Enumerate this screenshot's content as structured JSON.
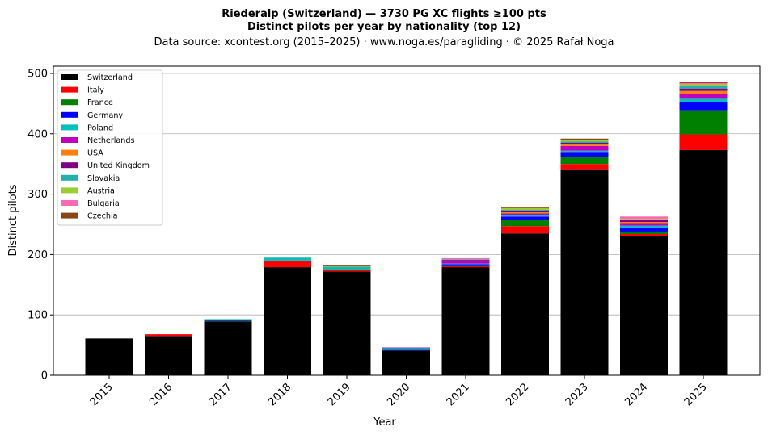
{
  "chart_data": {
    "type": "bar",
    "stacked": true,
    "title": "Riederalp (Switzerland)  —  3730 PG XC flights ≥100 pts",
    "subtitle": "Distinct pilots per year by nationality (top 12)",
    "source": "Data source: xcontest.org (2015–2025)  ·  www.noga.es/paragliding  ·  © 2025 Rafał Noga",
    "xlabel": "Year",
    "ylabel": "Distinct pilots",
    "ylim": [
      0,
      512
    ],
    "yticks": [
      0,
      100,
      200,
      300,
      400,
      500
    ],
    "grid": "y",
    "legend_position": "top-left",
    "categories": [
      "2015",
      "2016",
      "2017",
      "2018",
      "2019",
      "2020",
      "2021",
      "2022",
      "2023",
      "2024",
      "2025"
    ],
    "series": [
      {
        "name": "Switzerland",
        "color": "#000000",
        "values": [
          61,
          65,
          89,
          179,
          172,
          41,
          179,
          235,
          340,
          230,
          373
        ]
      },
      {
        "name": "Italy",
        "color": "#ff0000",
        "values": [
          0,
          3,
          0,
          11,
          2,
          0,
          2,
          12,
          10,
          4,
          26
        ]
      },
      {
        "name": "France",
        "color": "#008000",
        "values": [
          0,
          0,
          1,
          0,
          0,
          0,
          1,
          10,
          12,
          4,
          40
        ]
      },
      {
        "name": "Germany",
        "color": "#0000ff",
        "values": [
          0,
          0,
          1,
          0,
          0,
          1,
          2,
          6,
          8,
          7,
          14
        ]
      },
      {
        "name": "Poland",
        "color": "#00bfbf",
        "values": [
          0,
          0,
          2,
          4,
          1,
          3,
          1,
          2,
          2,
          3,
          5
        ]
      },
      {
        "name": "Netherlands",
        "color": "#bf00bf",
        "values": [
          0,
          0,
          0,
          0,
          0,
          0,
          4,
          3,
          8,
          4,
          8
        ]
      },
      {
        "name": "USA",
        "color": "#ff7f0e",
        "values": [
          0,
          0,
          0,
          0,
          0,
          0,
          0,
          2,
          3,
          2,
          5
        ]
      },
      {
        "name": "United Kingdom",
        "color": "#800080",
        "values": [
          0,
          0,
          0,
          0,
          0,
          1,
          2,
          2,
          2,
          3,
          4
        ]
      },
      {
        "name": "Slovakia",
        "color": "#20b2aa",
        "values": [
          0,
          0,
          0,
          1,
          5,
          0,
          1,
          2,
          2,
          1,
          4
        ]
      },
      {
        "name": "Austria",
        "color": "#9acd32",
        "values": [
          0,
          0,
          0,
          0,
          1,
          0,
          0,
          3,
          2,
          1,
          3
        ]
      },
      {
        "name": "Bulgaria",
        "color": "#ff69b4",
        "values": [
          0,
          0,
          0,
          0,
          0,
          0,
          2,
          0,
          1,
          4,
          2
        ]
      },
      {
        "name": "Czechia",
        "color": "#8b4513",
        "values": [
          0,
          0,
          0,
          0,
          2,
          0,
          0,
          2,
          2,
          0,
          2
        ]
      }
    ]
  }
}
